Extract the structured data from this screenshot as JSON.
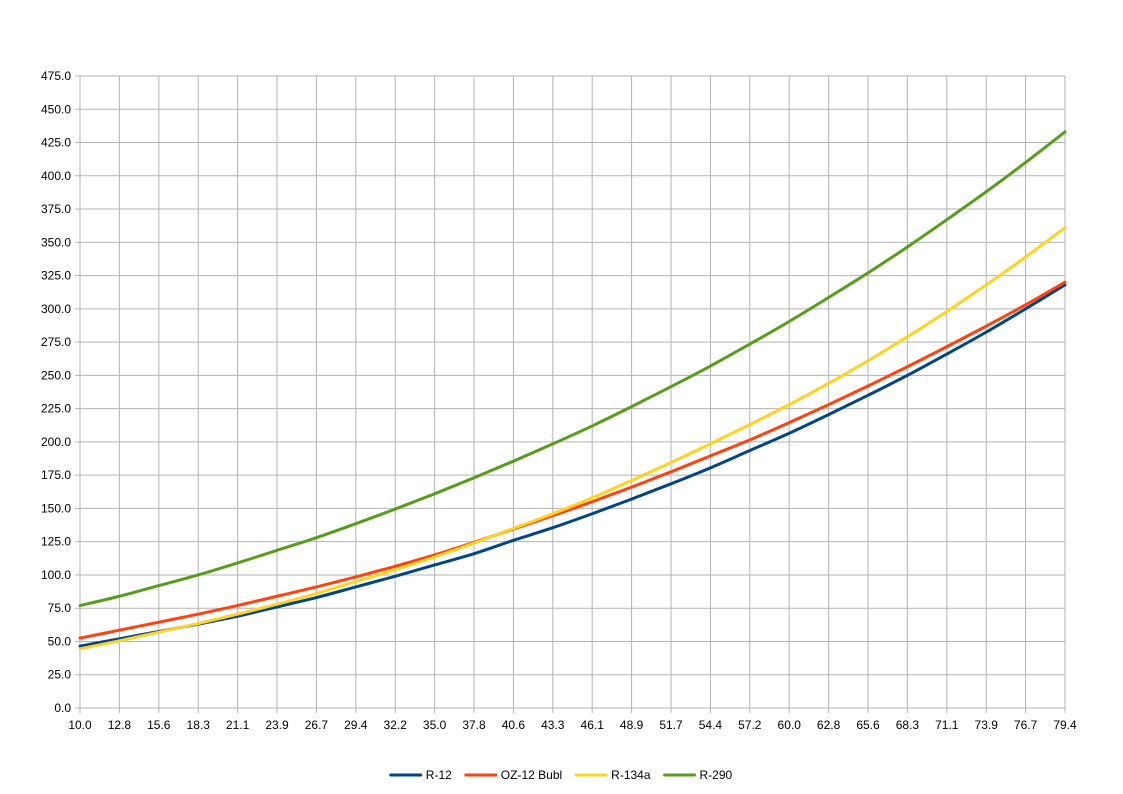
{
  "chart_data": {
    "type": "line",
    "title": "",
    "xlabel": "",
    "ylabel": "",
    "ylim": [
      0,
      475
    ],
    "y_ticks": [
      "0.0",
      "25.0",
      "50.0",
      "75.0",
      "100.0",
      "125.0",
      "150.0",
      "175.0",
      "200.0",
      "225.0",
      "250.0",
      "275.0",
      "300.0",
      "325.0",
      "350.0",
      "375.0",
      "400.0",
      "425.0",
      "450.0",
      "475.0"
    ],
    "categories": [
      "10.0",
      "12.8",
      "15.6",
      "18.3",
      "21.1",
      "23.9",
      "26.7",
      "29.4",
      "32.2",
      "35.0",
      "37.8",
      "40.6",
      "43.3",
      "46.1",
      "48.9",
      "51.7",
      "54.4",
      "57.2",
      "60.0",
      "62.8",
      "65.6",
      "68.3",
      "71.1",
      "73.9",
      "76.7",
      "79.4"
    ],
    "grid": true,
    "legend_position": "bottom",
    "series": [
      {
        "name": "R-12",
        "color": "#004586",
        "values": [
          46.5,
          52,
          57.5,
          63,
          69,
          76,
          83,
          91,
          99,
          107.5,
          116,
          126,
          135.5,
          146,
          157,
          168.5,
          180.5,
          193.5,
          206.5,
          220.5,
          235,
          250,
          266,
          282.5,
          300,
          318
        ]
      },
      {
        "name": "OZ-12 Bubl",
        "color": "#ff420e",
        "values": [
          52.5,
          58.5,
          64.5,
          70.5,
          77,
          84,
          91,
          98.5,
          106.5,
          115,
          124.5,
          134.5,
          144.5,
          155,
          166,
          177.5,
          189.5,
          201.5,
          214.5,
          228,
          242,
          256.5,
          271.5,
          287,
          303,
          320
        ]
      },
      {
        "name": "R-134a",
        "color": "#ffd320",
        "values": [
          44.5,
          50.5,
          57,
          63.5,
          70.5,
          78,
          86,
          95,
          104,
          113.5,
          124,
          135,
          146,
          158,
          171,
          184.5,
          198.5,
          213,
          228,
          244,
          261,
          279,
          298,
          318,
          339,
          361
        ]
      },
      {
        "name": "R-290",
        "color": "#579d1c",
        "values": [
          77,
          84,
          92,
          100,
          109,
          118.5,
          128,
          138.5,
          149.5,
          161,
          173,
          185.5,
          198.5,
          212,
          226.5,
          241.5,
          257,
          273.5,
          290.5,
          308.5,
          327,
          346.5,
          367,
          388,
          410,
          433
        ]
      }
    ]
  }
}
